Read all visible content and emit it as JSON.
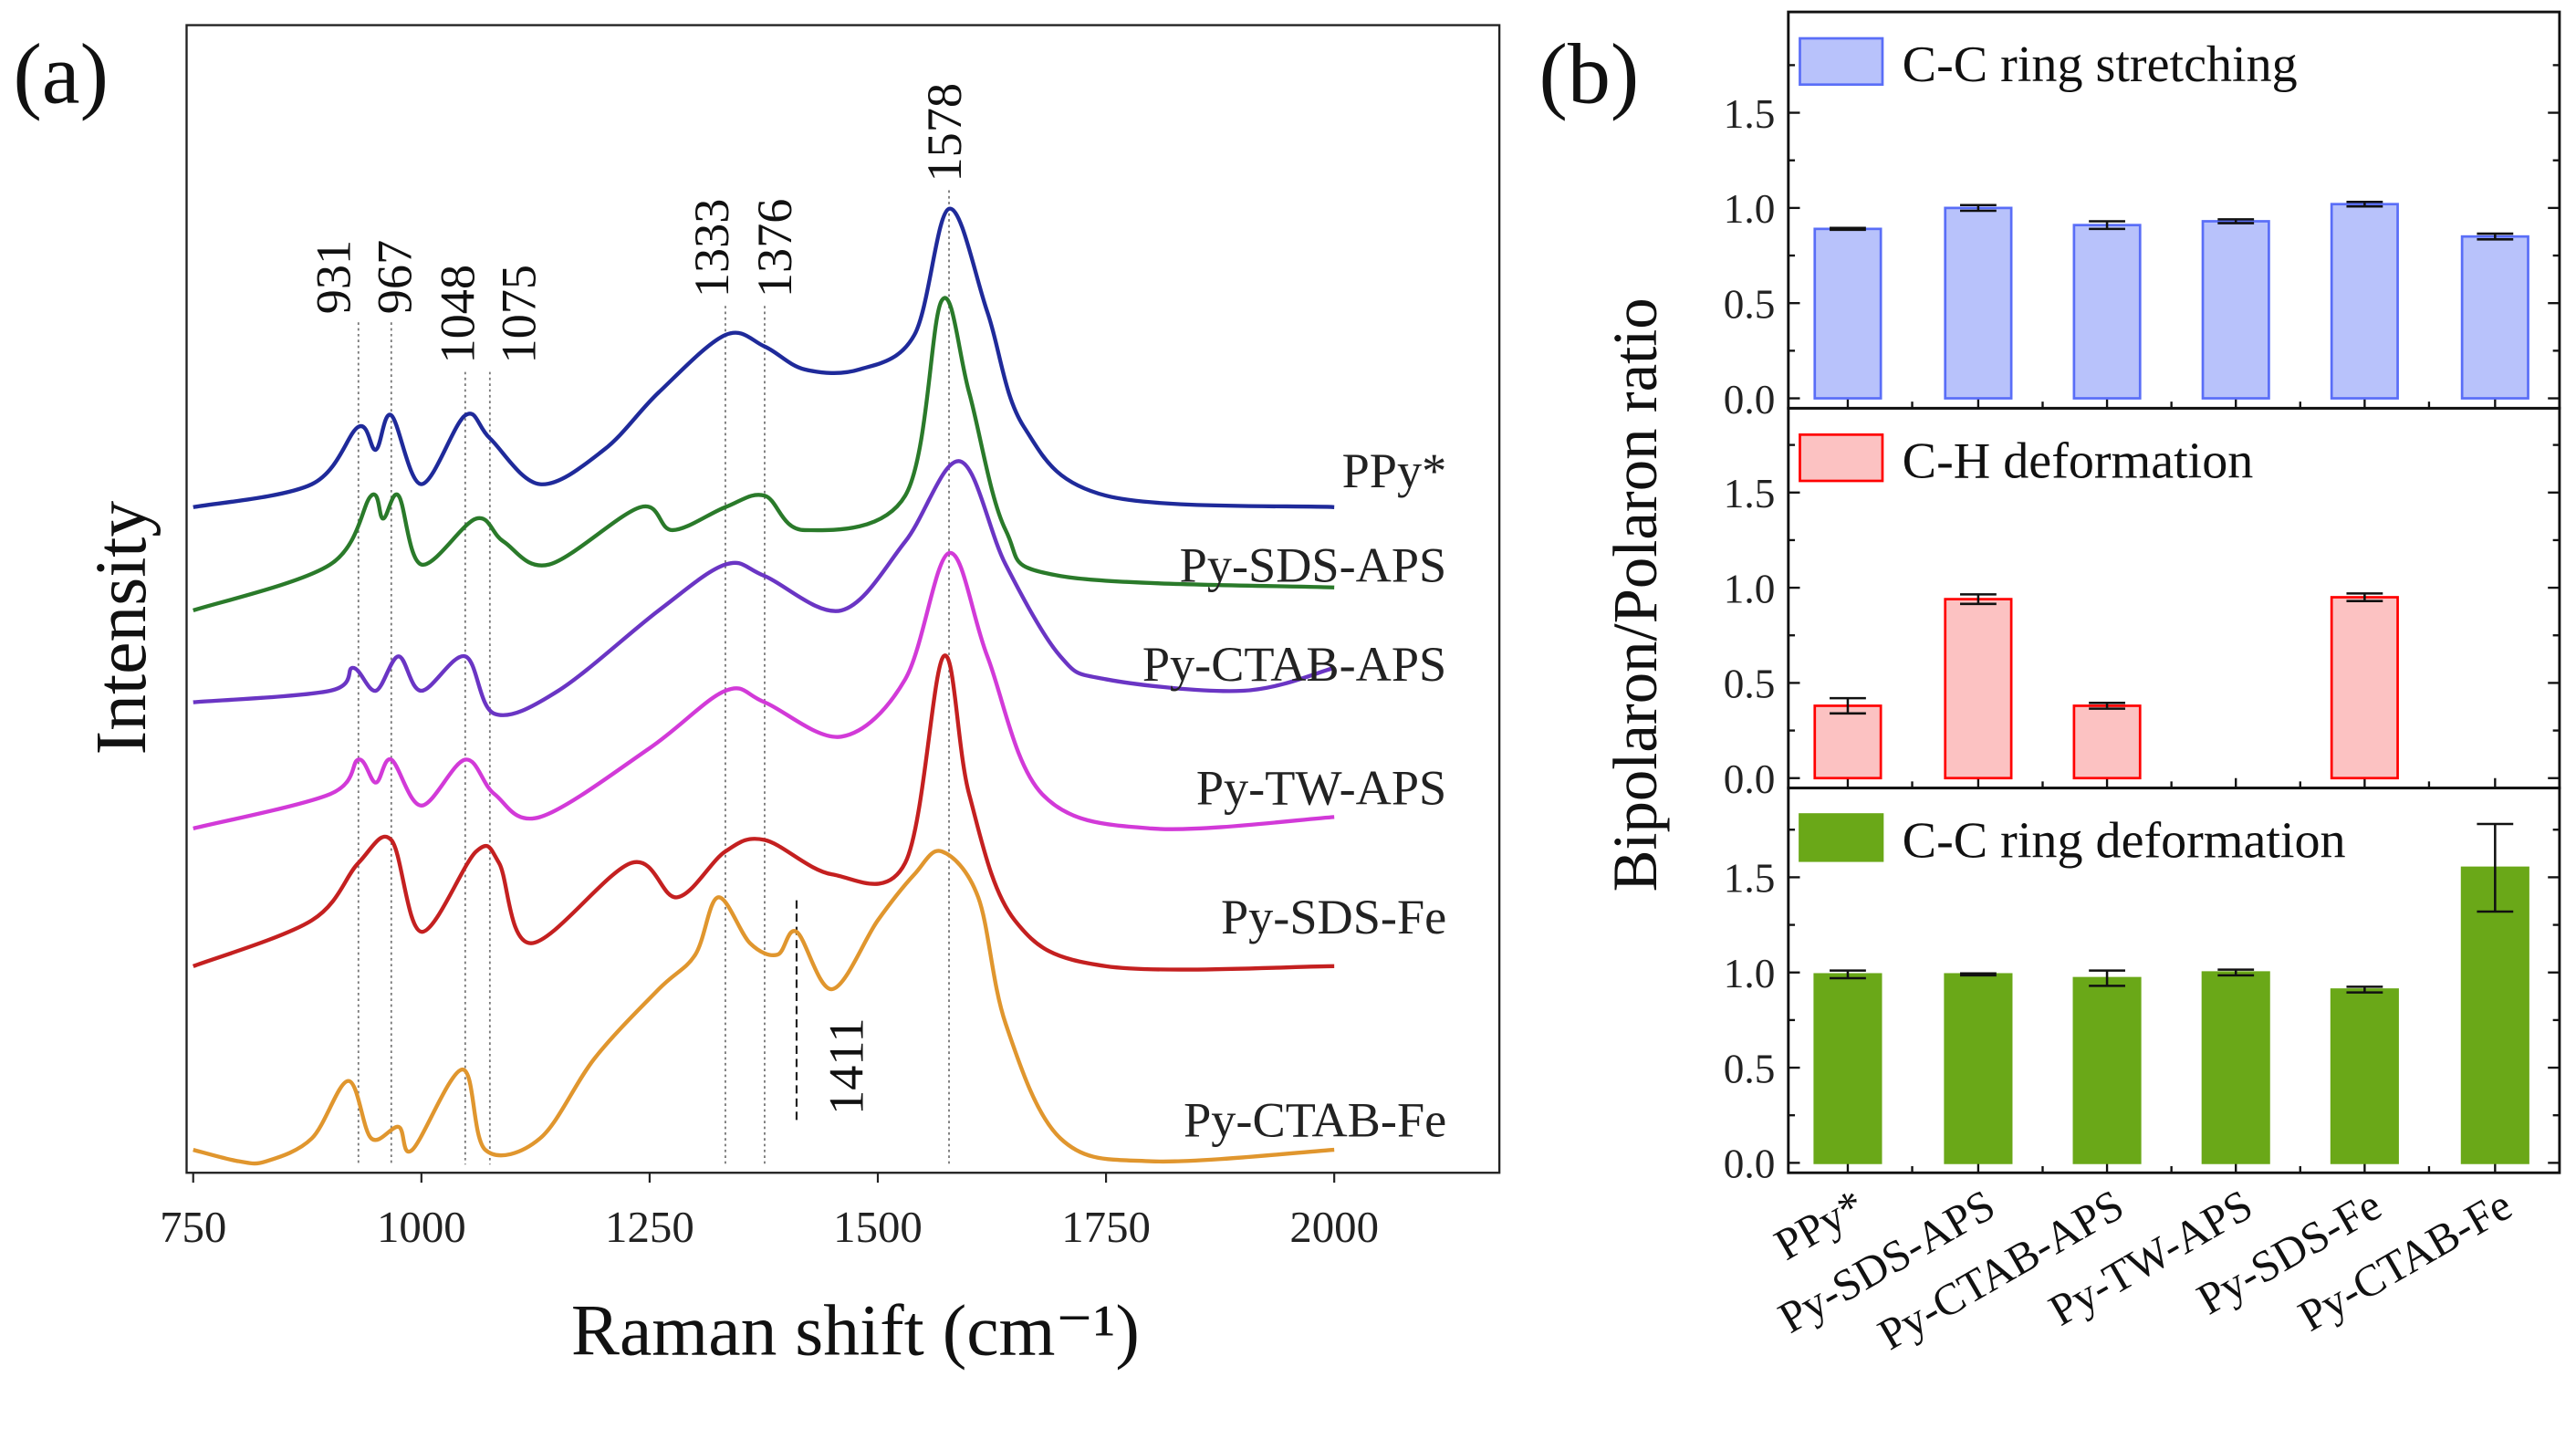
{
  "chart_data": [
    {
      "type": "line",
      "panel_label": "(a)",
      "xlabel": "Raman shift (cm⁻¹)",
      "ylabel": "Intensity",
      "xlim": [
        750,
        2180
      ],
      "ylim": [
        0,
        100
      ],
      "xticks": [
        750,
        1000,
        1250,
        1500,
        1750,
        2000
      ],
      "grid": false,
      "peak_labels": [
        "931",
        "967",
        "1048",
        "1075",
        "1333",
        "1376",
        "1578",
        "1411"
      ],
      "peak_positions": [
        931,
        967,
        1048,
        1075,
        1333,
        1376,
        1578
      ],
      "series": [
        {
          "name": "PPy*",
          "color": "#1f2a9a",
          "points": [
            [
              750,
              58
            ],
            [
              880,
              60
            ],
            [
              931,
              65
            ],
            [
              950,
              63
            ],
            [
              967,
              66
            ],
            [
              1000,
              60
            ],
            [
              1048,
              66
            ],
            [
              1075,
              64
            ],
            [
              1130,
              60
            ],
            [
              1200,
              63
            ],
            [
              1260,
              68
            ],
            [
              1333,
              73
            ],
            [
              1376,
              72
            ],
            [
              1420,
              70
            ],
            [
              1480,
              70
            ],
            [
              1540,
              73
            ],
            [
              1578,
              84
            ],
            [
              1620,
              75
            ],
            [
              1660,
              65
            ],
            [
              1750,
              59
            ],
            [
              2000,
              58
            ]
          ]
        },
        {
          "name": "Py-SDS-APS",
          "color": "#2a7a2a",
          "points": [
            [
              750,
              49
            ],
            [
              900,
              53
            ],
            [
              945,
              59
            ],
            [
              958,
              57
            ],
            [
              975,
              59
            ],
            [
              1000,
              53
            ],
            [
              1060,
              57
            ],
            [
              1090,
              55
            ],
            [
              1140,
              53
            ],
            [
              1240,
              58
            ],
            [
              1275,
              56
            ],
            [
              1333,
              58
            ],
            [
              1376,
              59
            ],
            [
              1420,
              56
            ],
            [
              1530,
              59
            ],
            [
              1570,
              76
            ],
            [
              1600,
              68
            ],
            [
              1640,
              56
            ],
            [
              1700,
              52
            ],
            [
              2000,
              51
            ]
          ]
        },
        {
          "name": "Py-CTAB-APS",
          "color": "#6a35c4",
          "points": [
            [
              750,
              41
            ],
            [
              900,
              42
            ],
            [
              925,
              44
            ],
            [
              950,
              42
            ],
            [
              975,
              45
            ],
            [
              1000,
              42
            ],
            [
              1048,
              45
            ],
            [
              1080,
              40
            ],
            [
              1150,
              42
            ],
            [
              1260,
              49
            ],
            [
              1333,
              53
            ],
            [
              1376,
              52
            ],
            [
              1460,
              49
            ],
            [
              1530,
              55
            ],
            [
              1590,
              62
            ],
            [
              1640,
              53
            ],
            [
              1700,
              45
            ],
            [
              1750,
              43
            ],
            [
              1900,
              42
            ],
            [
              2000,
              44
            ]
          ]
        },
        {
          "name": "Py-TW-APS",
          "color": "#d23ad8",
          "points": [
            [
              750,
              30
            ],
            [
              900,
              33
            ],
            [
              931,
              36
            ],
            [
              950,
              34
            ],
            [
              967,
              36
            ],
            [
              1000,
              32
            ],
            [
              1048,
              36
            ],
            [
              1080,
              33
            ],
            [
              1130,
              31
            ],
            [
              1250,
              37
            ],
            [
              1333,
              42
            ],
            [
              1376,
              41
            ],
            [
              1460,
              38
            ],
            [
              1530,
              43
            ],
            [
              1578,
              54
            ],
            [
              1620,
              45
            ],
            [
              1680,
              33
            ],
            [
              1800,
              30
            ],
            [
              2000,
              31
            ]
          ]
        },
        {
          "name": "Py-SDS-Fe",
          "color": "#c42020",
          "points": [
            [
              750,
              18
            ],
            [
              880,
              22
            ],
            [
              931,
              27
            ],
            [
              967,
              29
            ],
            [
              1000,
              21
            ],
            [
              1060,
              28
            ],
            [
              1085,
              27
            ],
            [
              1120,
              20
            ],
            [
              1230,
              27
            ],
            [
              1280,
              24
            ],
            [
              1333,
              28
            ],
            [
              1376,
              29
            ],
            [
              1450,
              26
            ],
            [
              1530,
              27
            ],
            [
              1572,
              45
            ],
            [
              1600,
              33
            ],
            [
              1650,
              22
            ],
            [
              1750,
              18
            ],
            [
              2000,
              18
            ]
          ]
        },
        {
          "name": "Py-CTAB-Fe",
          "color": "#e0962e",
          "points": [
            [
              750,
              2
            ],
            [
              800,
              1
            ],
            [
              830,
              1
            ],
            [
              880,
              3
            ],
            [
              920,
              8
            ],
            [
              945,
              3
            ],
            [
              975,
              4
            ],
            [
              990,
              2
            ],
            [
              1045,
              9
            ],
            [
              1070,
              2
            ],
            [
              1130,
              3
            ],
            [
              1190,
              10
            ],
            [
              1260,
              16
            ],
            [
              1300,
              19
            ],
            [
              1325,
              24
            ],
            [
              1360,
              20
            ],
            [
              1390,
              19
            ],
            [
              1411,
              21
            ],
            [
              1450,
              16
            ],
            [
              1500,
              22
            ],
            [
              1540,
              26
            ],
            [
              1570,
              28
            ],
            [
              1610,
              24
            ],
            [
              1640,
              13
            ],
            [
              1700,
              3
            ],
            [
              1800,
              1
            ],
            [
              2000,
              2
            ]
          ]
        }
      ]
    },
    {
      "type": "bar",
      "panel_label": "(b)",
      "ylabel": "Bipolaron/Polaron ratio",
      "categories": [
        "PPy*",
        "Py-SDS-APS",
        "Py-CTAB-APS",
        "Py-TW-APS",
        "Py-SDS-Fe",
        "Py-CTAB-Fe"
      ],
      "ylim": [
        0,
        2.0
      ],
      "yticks": [
        "0.0",
        "0.5",
        "1.0",
        "1.5"
      ],
      "grid": false,
      "subplots": [
        {
          "name": "C-C ring stretching",
          "fill": "#b8c2fb",
          "stroke": "#5a6ef7",
          "values": [
            0.89,
            1.0,
            0.91,
            0.93,
            1.02,
            0.85
          ],
          "errors": [
            0.005,
            0.015,
            0.02,
            0.01,
            0.012,
            0.015
          ]
        },
        {
          "name": "C-H deformation",
          "fill": "#fcc2c2",
          "stroke": "#ff0000",
          "values": [
            0.38,
            0.94,
            0.38,
            null,
            0.95,
            null
          ],
          "errors": [
            0.04,
            0.025,
            0.015,
            null,
            0.02,
            null
          ]
        },
        {
          "name": "C-C ring  deformation",
          "fill": "#6aa818",
          "stroke": "#6aa818",
          "values": [
            0.99,
            0.99,
            0.97,
            1.0,
            0.91,
            1.55
          ],
          "errors": [
            0.02,
            0.005,
            0.04,
            0.015,
            0.015,
            0.23
          ]
        }
      ]
    }
  ]
}
